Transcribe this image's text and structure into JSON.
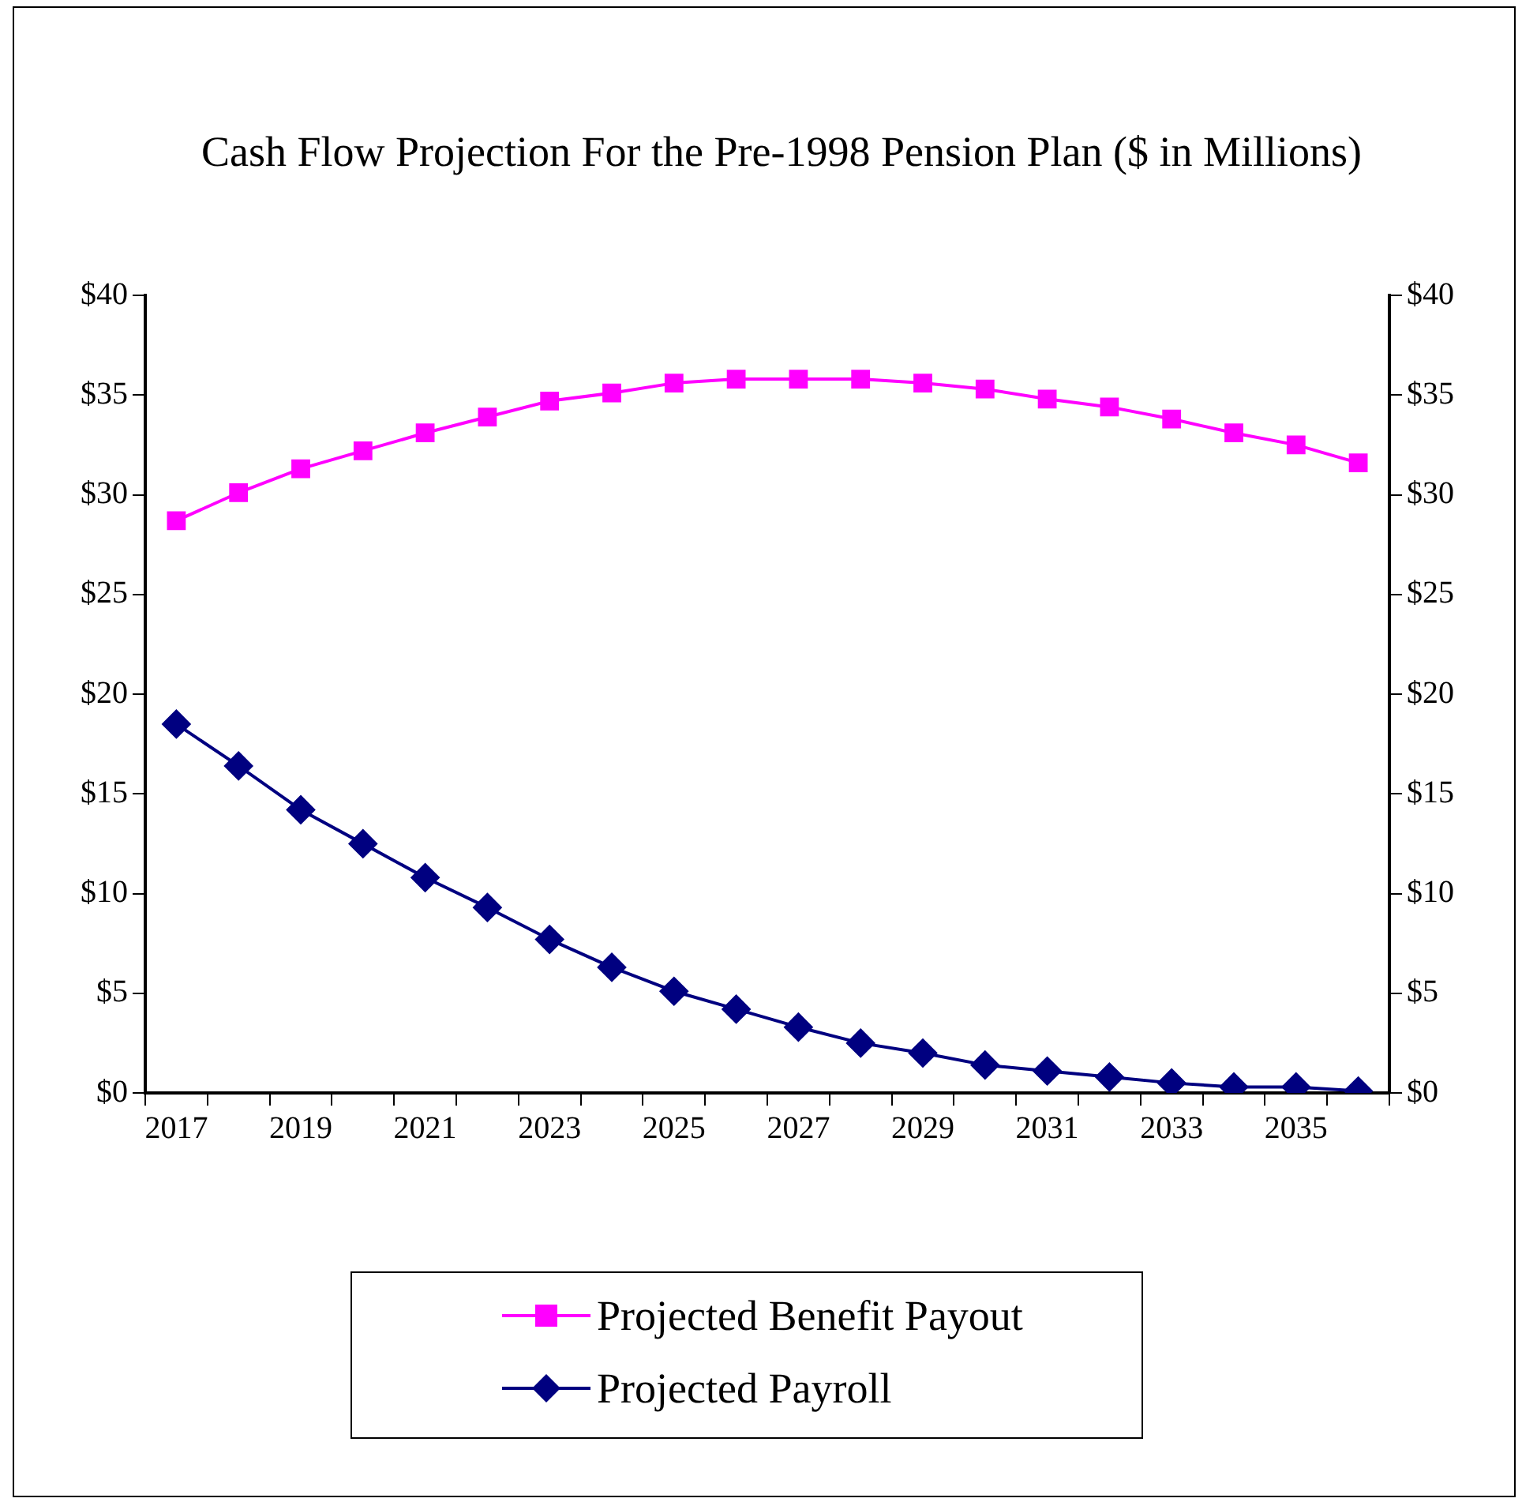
{
  "chart_data": {
    "type": "line",
    "title": "Cash Flow Projection  For the Pre-1998 Pension  Plan ($ in Millions)",
    "categories": [
      "2017",
      null,
      "2019",
      null,
      "2021",
      null,
      "2023",
      null,
      "2025",
      null,
      "2027",
      null,
      "2029",
      null,
      "2031",
      null,
      "2033",
      null,
      "2035",
      null
    ],
    "series": [
      {
        "name": "Projected Benefit  Payout",
        "color": "#ff00ff",
        "marker": "square",
        "values": [
          28.7,
          30.1,
          31.3,
          32.2,
          33.1,
          33.9,
          34.7,
          35.1,
          35.6,
          35.8,
          35.8,
          35.8,
          35.6,
          35.3,
          34.8,
          34.4,
          33.8,
          33.1,
          32.5,
          31.6
        ]
      },
      {
        "name": "Projected  Payroll",
        "color": "#000080",
        "marker": "diamond",
        "values": [
          18.5,
          16.4,
          14.2,
          12.5,
          10.8,
          9.3,
          7.7,
          6.3,
          5.1,
          4.2,
          3.3,
          2.5,
          2.0,
          1.4,
          1.1,
          0.8,
          0.5,
          0.3,
          0.3,
          0.1
        ]
      }
    ],
    "ylim": [
      0,
      40
    ],
    "yticks": [
      {
        "value": 0,
        "label": "$0"
      },
      {
        "value": 5,
        "label": "$5"
      },
      {
        "value": 10,
        "label": "$10"
      },
      {
        "value": 15,
        "label": "$15"
      },
      {
        "value": 20,
        "label": "$20"
      },
      {
        "value": 25,
        "label": "$25"
      },
      {
        "value": 30,
        "label": "$30"
      },
      {
        "value": 35,
        "label": "$35"
      },
      {
        "value": 40,
        "label": "$40"
      }
    ],
    "y2lim": [
      0,
      40
    ],
    "y2ticks": [
      {
        "value": 0,
        "label": "$0"
      },
      {
        "value": 5,
        "label": "$5"
      },
      {
        "value": 10,
        "label": "$10"
      },
      {
        "value": 15,
        "label": "$15"
      },
      {
        "value": 20,
        "label": "$20"
      },
      {
        "value": 25,
        "label": "$25"
      },
      {
        "value": 30,
        "label": "$30"
      },
      {
        "value": 35,
        "label": "$35"
      },
      {
        "value": 40,
        "label": "$40"
      }
    ],
    "grid": false,
    "legend": "bottom",
    "line_style": "solid"
  }
}
